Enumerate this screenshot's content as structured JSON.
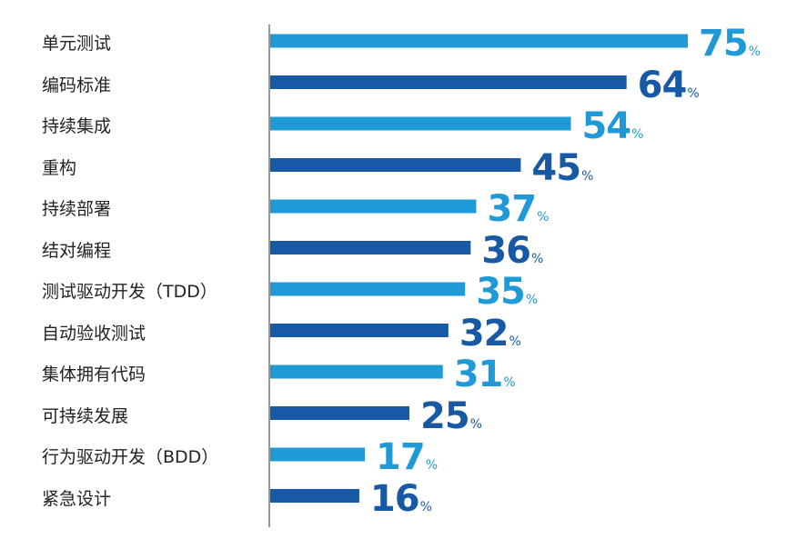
{
  "chart_data": {
    "type": "bar",
    "orientation": "horizontal",
    "categories": [
      "单元测试",
      "编码标准",
      "持续集成",
      "重构",
      "持续部署",
      "结对编程",
      "测试驱动开发（TDD）",
      "自动验收测试",
      "集体拥有代码",
      "可持续发展",
      "行为驱动开发（BDD）",
      "紧急设计"
    ],
    "values": [
      75,
      64,
      54,
      45,
      37,
      36,
      35,
      32,
      31,
      25,
      17,
      16
    ],
    "unit": "%",
    "xlim": [
      0,
      100
    ],
    "grid": false,
    "legend": false
  },
  "colors": {
    "light": "#1f9ad6",
    "dark": "#1759a5",
    "axis": "#999999"
  }
}
